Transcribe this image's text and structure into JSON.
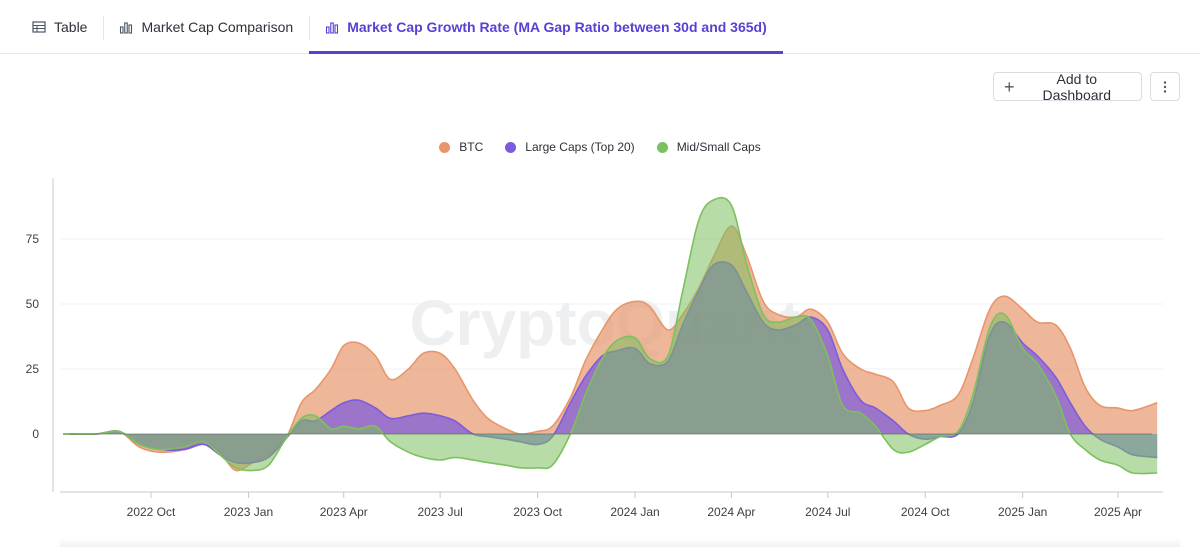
{
  "tabs": [
    {
      "label": "Table",
      "icon": "table-icon"
    },
    {
      "label": "Market Cap Comparison",
      "icon": "bar-chart-icon"
    },
    {
      "label": "Market Cap Growth Rate (MA Gap Ratio between 30d and 365d)",
      "icon": "bar-chart-icon"
    }
  ],
  "toolbar": {
    "add_label": "Add to Dashboard",
    "more_icon": "more-vertical-icon"
  },
  "watermark": "CryptoQuant",
  "colors": {
    "accent": "#5b3fd4",
    "btc": "#e8956a",
    "large": "#7b5cdc",
    "mid": "#7cc05f"
  },
  "chart_data": {
    "type": "area",
    "title": "",
    "xlabel": "",
    "ylabel": "",
    "ylim": [
      -20,
      85
    ],
    "yticks": [
      0,
      25,
      50,
      75
    ],
    "xlim": [
      "2022-07-10",
      "2025-05-15"
    ],
    "xticks": [
      {
        "date": "2022-10-01",
        "label": "2022 Oct"
      },
      {
        "date": "2023-01-01",
        "label": "2023 Jan"
      },
      {
        "date": "2023-04-01",
        "label": "2023 Apr"
      },
      {
        "date": "2023-07-01",
        "label": "2023 Jul"
      },
      {
        "date": "2023-10-01",
        "label": "2023 Oct"
      },
      {
        "date": "2024-01-01",
        "label": "2024 Jan"
      },
      {
        "date": "2024-04-01",
        "label": "2024 Apr"
      },
      {
        "date": "2024-07-01",
        "label": "2024 Jul"
      },
      {
        "date": "2024-10-01",
        "label": "2024 Oct"
      },
      {
        "date": "2025-01-01",
        "label": "2025 Jan"
      },
      {
        "date": "2025-04-01",
        "label": "2025 Apr"
      }
    ],
    "grid": true,
    "legend": "top-center",
    "x": [
      "2022-07-10",
      "2022-08-10",
      "2022-09-01",
      "2022-09-20",
      "2022-10-10",
      "2022-11-01",
      "2022-11-20",
      "2022-12-05",
      "2022-12-20",
      "2023-01-05",
      "2023-01-20",
      "2023-02-05",
      "2023-02-20",
      "2023-03-05",
      "2023-03-20",
      "2023-04-01",
      "2023-04-15",
      "2023-05-01",
      "2023-05-15",
      "2023-06-01",
      "2023-06-15",
      "2023-07-01",
      "2023-07-15",
      "2023-08-01",
      "2023-08-15",
      "2023-09-01",
      "2023-09-15",
      "2023-10-01",
      "2023-10-15",
      "2023-11-01",
      "2023-11-15",
      "2023-12-01",
      "2023-12-15",
      "2024-01-01",
      "2024-01-15",
      "2024-02-01",
      "2024-02-15",
      "2024-03-01",
      "2024-03-15",
      "2024-04-01",
      "2024-04-15",
      "2024-05-01",
      "2024-05-15",
      "2024-06-01",
      "2024-06-15",
      "2024-07-01",
      "2024-07-15",
      "2024-08-01",
      "2024-08-15",
      "2024-09-01",
      "2024-09-15",
      "2024-10-01",
      "2024-10-15",
      "2024-11-01",
      "2024-11-15",
      "2024-12-01",
      "2024-12-15",
      "2025-01-01",
      "2025-01-15",
      "2025-02-01",
      "2025-02-15",
      "2025-03-01",
      "2025-03-15",
      "2025-04-01",
      "2025-04-15",
      "2025-05-08"
    ],
    "series": [
      {
        "name": "BTC",
        "values": [
          0,
          0,
          1,
          -5,
          -7,
          -6,
          -3,
          -7,
          -14,
          -11,
          -8,
          -2,
          12,
          17,
          25,
          34,
          35,
          30,
          21,
          25,
          31,
          31,
          25,
          13,
          6,
          2,
          0,
          1,
          3,
          14,
          28,
          40,
          48,
          51,
          49,
          40,
          46,
          56,
          68,
          80,
          69,
          51,
          46,
          45,
          48,
          43,
          31,
          25,
          23,
          20,
          10,
          9,
          11,
          15,
          29,
          48,
          53,
          48,
          43,
          42,
          33,
          18,
          11,
          10,
          9,
          12
        ]
      },
      {
        "name": "Large Caps (Top 20)",
        "values": [
          0,
          0,
          1,
          -4,
          -6,
          -6,
          -4,
          -8,
          -11,
          -11,
          -9,
          -2,
          5,
          5,
          9,
          12,
          13,
          10,
          6,
          7,
          8,
          7,
          5,
          0,
          -1,
          -2,
          -3,
          -4,
          -1,
          12,
          22,
          30,
          32,
          33,
          27,
          28,
          42,
          55,
          65,
          65,
          55,
          43,
          40,
          42,
          45,
          40,
          25,
          13,
          10,
          5,
          0,
          -2,
          -1,
          0,
          12,
          38,
          43,
          35,
          30,
          22,
          12,
          3,
          -2,
          -5,
          -8,
          -9
        ]
      },
      {
        "name": "Mid/Small Caps",
        "values": [
          0,
          0,
          1,
          -4,
          -6,
          -5,
          -3,
          -8,
          -13,
          -14,
          -12,
          -2,
          6,
          7,
          2,
          3,
          2,
          3,
          -3,
          -7,
          -9,
          -10,
          -9,
          -10,
          -11,
          -12,
          -13,
          -13,
          -12,
          0,
          15,
          29,
          36,
          37,
          29,
          30,
          55,
          82,
          90,
          88,
          66,
          46,
          43,
          45,
          44,
          30,
          11,
          8,
          3,
          -6,
          -7,
          -4,
          -1,
          1,
          15,
          41,
          46,
          33,
          27,
          15,
          0,
          -6,
          -10,
          -12,
          -15,
          -15
        ]
      }
    ]
  }
}
